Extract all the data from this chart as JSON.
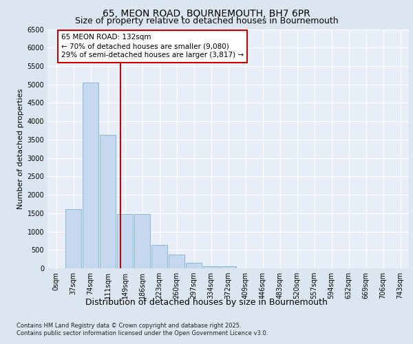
{
  "title1": "65, MEON ROAD, BOURNEMOUTH, BH7 6PR",
  "title2": "Size of property relative to detached houses in Bournemouth",
  "xlabel": "Distribution of detached houses by size in Bournemouth",
  "ylabel": "Number of detached properties",
  "categories": [
    "0sqm",
    "37sqm",
    "74sqm",
    "111sqm",
    "149sqm",
    "186sqm",
    "223sqm",
    "260sqm",
    "297sqm",
    "334sqm",
    "372sqm",
    "409sqm",
    "446sqm",
    "483sqm",
    "520sqm",
    "557sqm",
    "594sqm",
    "632sqm",
    "669sqm",
    "706sqm",
    "743sqm"
  ],
  "values": [
    0,
    1600,
    5050,
    3620,
    1480,
    1480,
    640,
    370,
    150,
    50,
    50,
    0,
    0,
    0,
    0,
    0,
    0,
    0,
    0,
    0,
    0
  ],
  "bar_color": "#c5d8ee",
  "bar_edge_color": "#7bafd4",
  "vline_x_index": 3.72,
  "vline_color": "#cc0000",
  "annotation_text": "65 MEON ROAD: 132sqm\n← 70% of detached houses are smaller (9,080)\n29% of semi-detached houses are larger (3,817) →",
  "annotation_box_facecolor": "white",
  "annotation_box_edgecolor": "#cc0000",
  "ylim": [
    0,
    6500
  ],
  "yticks": [
    0,
    500,
    1000,
    1500,
    2000,
    2500,
    3000,
    3500,
    4000,
    4500,
    5000,
    5500,
    6000,
    6500
  ],
  "footer_line1": "Contains HM Land Registry data © Crown copyright and database right 2025.",
  "footer_line2": "Contains public sector information licensed under the Open Government Licence v3.0.",
  "bg_color": "#dce6f0",
  "plot_bg_color": "#e8eef8",
  "grid_color": "#ffffff",
  "title1_fontsize": 10,
  "title2_fontsize": 9,
  "ylabel_fontsize": 8,
  "xlabel_fontsize": 9,
  "tick_fontsize": 7,
  "annotation_fontsize": 7.5,
  "footer_fontsize": 6
}
